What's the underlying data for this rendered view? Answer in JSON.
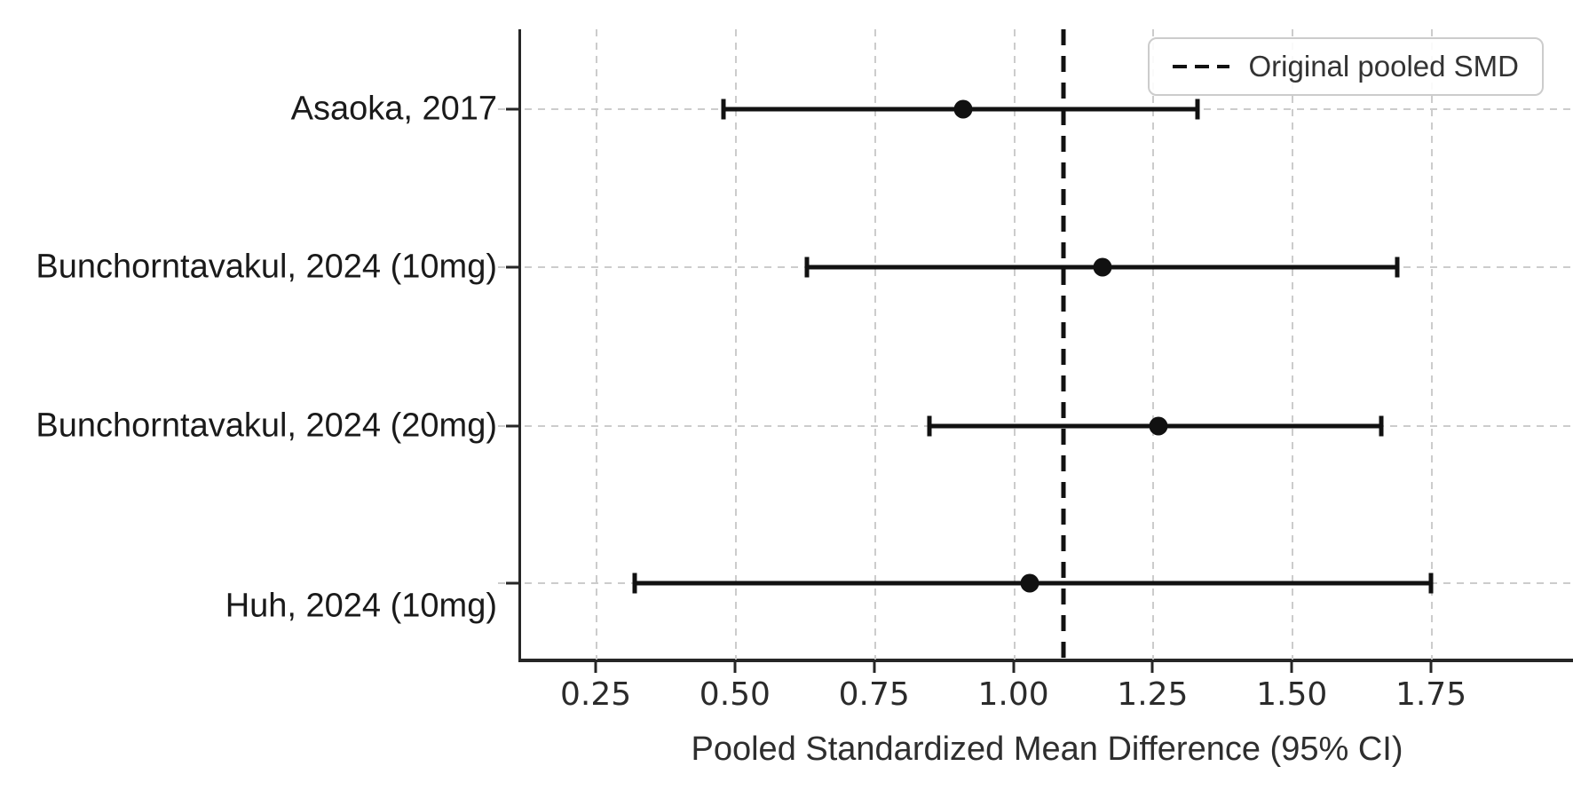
{
  "chart_data": {
    "type": "scatter",
    "subtype": "forest-plot",
    "title": "",
    "xlabel": "Pooled Standardized Mean Difference (95% CI)",
    "ylabel": "",
    "xlim": [
      0.116,
      2.005
    ],
    "grid": true,
    "legend_position": "upper right",
    "x_tick_values": [
      0.25,
      0.5,
      0.75,
      1.0,
      1.25,
      1.5,
      1.75
    ],
    "x_tick_labels": [
      "0.25",
      "0.50",
      "0.75",
      "1.00",
      "1.25",
      "1.50",
      "1.75"
    ],
    "reference_line": {
      "value": 1.09,
      "label": "Original pooled SMD",
      "style": "dashed"
    },
    "rows": [
      {
        "label": "Asaoka, 2017",
        "estimate": 0.91,
        "ci_low": 0.48,
        "ci_high": 1.33
      },
      {
        "label": "Bunchorntavakul, 2024 (10mg)",
        "estimate": 1.16,
        "ci_low": 0.63,
        "ci_high": 1.69
      },
      {
        "label": "Bunchorntavakul, 2024 (20mg)",
        "estimate": 1.26,
        "ci_low": 0.85,
        "ci_high": 1.66
      },
      {
        "label": "Huh, 2024 (10mg)",
        "estimate": 1.03,
        "ci_low": 0.32,
        "ci_high": 1.75
      }
    ],
    "colors": {
      "data": "#111111",
      "grid": "#cccccc",
      "spine": "#262626",
      "text": "#2b2b2b"
    }
  }
}
